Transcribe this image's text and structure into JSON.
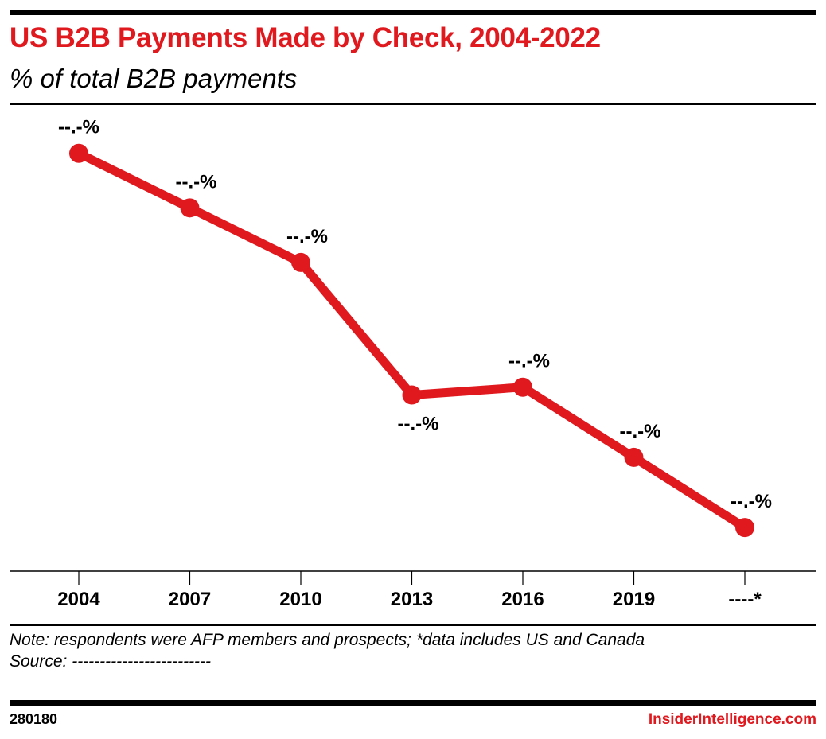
{
  "header": {
    "title": "US B2B Payments Made by Check, 2004-2022",
    "subtitle": "% of total B2B payments"
  },
  "chart_data": {
    "type": "line",
    "title": "US B2B Payments Made by Check, 2004-2022",
    "subtitle": "% of total B2B payments",
    "categories": [
      "2004",
      "2007",
      "2010",
      "2013",
      "2016",
      "2019",
      "----*"
    ],
    "series": [
      {
        "values": [
          81,
          74,
          67,
          50,
          51,
          42,
          33
        ],
        "data_labels": [
          "--.-%",
          "--.-%",
          "--.-%",
          "--.-%",
          "--.-%",
          "--.-%",
          "--.-%"
        ],
        "color": "#e0191f"
      }
    ],
    "ylim": [
      27.4,
      87.3
    ],
    "grid": false,
    "legend": "none",
    "xlabel": "",
    "ylabel": ""
  },
  "footer": {
    "note": "Note: respondents were AFP members and prospects; *data includes US and Canada",
    "source": "Source: -------------------------",
    "chart_id": "280180",
    "brand": "InsiderIntelligence.com"
  },
  "colors": {
    "accent": "#e0191f",
    "text": "#000000"
  }
}
